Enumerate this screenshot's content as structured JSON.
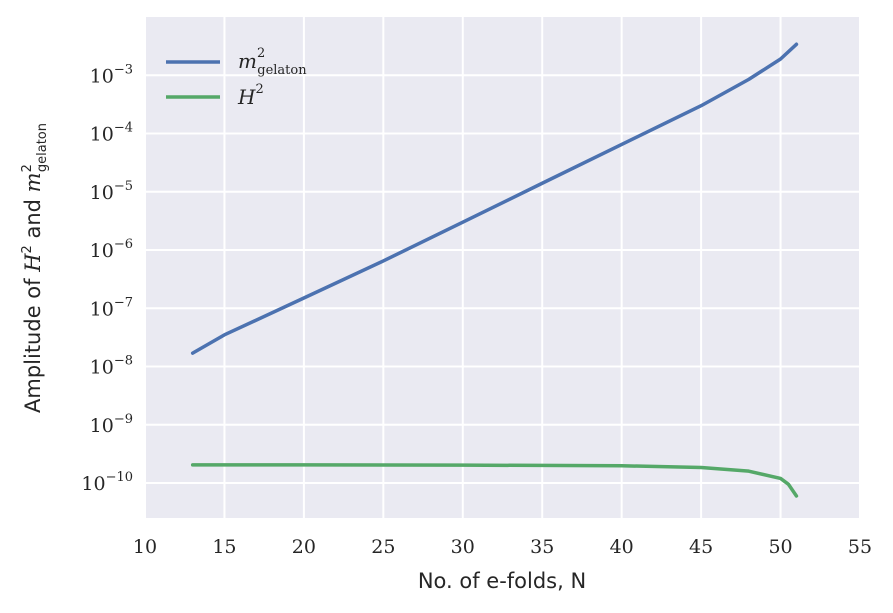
{
  "chart_data": {
    "type": "line",
    "title": "",
    "xlabel": "No. of e-folds, N",
    "ylabel": {
      "prefix": "Amplitude of ",
      "h_base": "H",
      "h_exp": "2",
      "mid": " and ",
      "m_base": "m",
      "m_exp": "2",
      "m_sub": "gelaton"
    },
    "xlim": [
      10,
      55
    ],
    "ylim_log10": [
      -10.6,
      -2.0
    ],
    "yscale": "log",
    "grid": true,
    "legend_position": "top-left",
    "x_ticks": [
      "10",
      "15",
      "20",
      "25",
      "30",
      "35",
      "40",
      "45",
      "50",
      "55"
    ],
    "y_ticks": [
      {
        "value": -3,
        "base": "10",
        "exp": "−3"
      },
      {
        "value": -4,
        "base": "10",
        "exp": "−4"
      },
      {
        "value": -5,
        "base": "10",
        "exp": "−5"
      },
      {
        "value": -6,
        "base": "10",
        "exp": "−6"
      },
      {
        "value": -7,
        "base": "10",
        "exp": "−7"
      },
      {
        "value": -8,
        "base": "10",
        "exp": "−8"
      },
      {
        "value": -9,
        "base": "10",
        "exp": "−9"
      },
      {
        "value": -10,
        "base": "10",
        "exp": "−10"
      }
    ],
    "series": [
      {
        "name": "m²gelaton",
        "legend": {
          "base": "m",
          "exp": "2",
          "sub": "gelaton"
        },
        "color": "#4c72b0",
        "x": [
          13,
          15,
          20,
          25,
          30,
          35,
          40,
          45,
          48,
          50,
          51
        ],
        "y": [
          1.7e-08,
          3.5e-08,
          1.5e-07,
          6.5e-07,
          3e-06,
          1.4e-05,
          6.5e-05,
          0.0003,
          0.00085,
          0.0019,
          0.0034
        ]
      },
      {
        "name": "H²",
        "legend": {
          "base": "H",
          "exp": "2"
        },
        "color": "#55a868",
        "x": [
          13,
          20,
          30,
          40,
          45,
          48,
          50,
          50.5,
          51
        ],
        "y": [
          2.05e-10,
          2.05e-10,
          2.03e-10,
          1.98e-10,
          1.85e-10,
          1.6e-10,
          1.2e-10,
          9.5e-11,
          6e-11
        ]
      }
    ]
  },
  "style": {
    "plot_bg": "#eaeaf2",
    "grid_color": "#ffffff",
    "text_color": "#262626"
  }
}
